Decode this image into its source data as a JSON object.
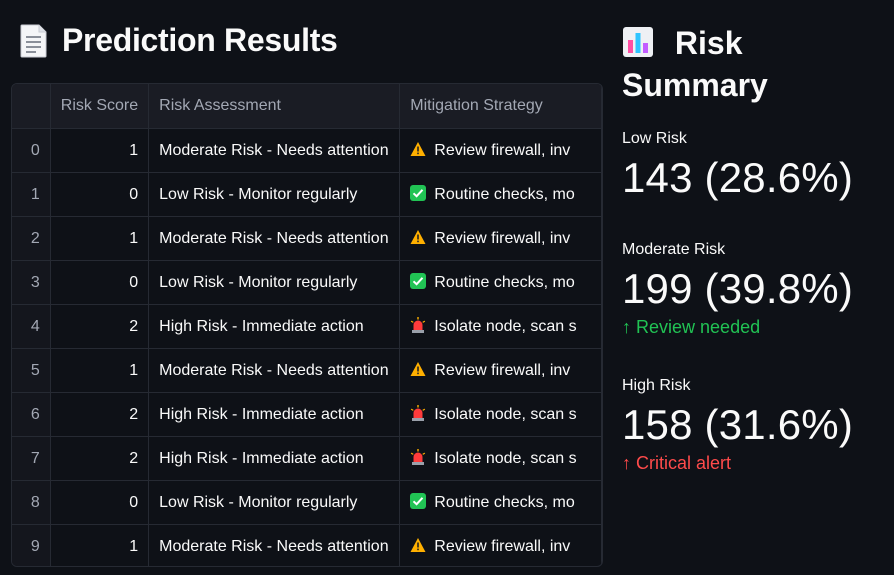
{
  "header": {
    "title": "Prediction Results",
    "icon": "page-icon"
  },
  "table": {
    "columns": [
      "",
      "Risk Score",
      "Risk Assessment",
      "Mitigation Strategy"
    ],
    "rows": [
      {
        "index": "0",
        "score": "1",
        "assessment": "Moderate Risk - Needs attention",
        "icon": "warning-icon",
        "mitigation": "Review firewall, inv"
      },
      {
        "index": "1",
        "score": "0",
        "assessment": "Low Risk - Monitor regularly",
        "icon": "check-icon",
        "mitigation": "Routine checks, mo"
      },
      {
        "index": "2",
        "score": "1",
        "assessment": "Moderate Risk - Needs attention",
        "icon": "warning-icon",
        "mitigation": "Review firewall, inv"
      },
      {
        "index": "3",
        "score": "0",
        "assessment": "Low Risk - Monitor regularly",
        "icon": "check-icon",
        "mitigation": "Routine checks, mo"
      },
      {
        "index": "4",
        "score": "2",
        "assessment": "High Risk - Immediate action",
        "icon": "siren-icon",
        "mitigation": "Isolate node, scan s"
      },
      {
        "index": "5",
        "score": "1",
        "assessment": "Moderate Risk - Needs attention",
        "icon": "warning-icon",
        "mitigation": "Review firewall, inv"
      },
      {
        "index": "6",
        "score": "2",
        "assessment": "High Risk - Immediate action",
        "icon": "siren-icon",
        "mitigation": "Isolate node, scan s"
      },
      {
        "index": "7",
        "score": "2",
        "assessment": "High Risk - Immediate action",
        "icon": "siren-icon",
        "mitigation": "Isolate node, scan s"
      },
      {
        "index": "8",
        "score": "0",
        "assessment": "Low Risk - Monitor regularly",
        "icon": "check-icon",
        "mitigation": "Routine checks, mo"
      },
      {
        "index": "9",
        "score": "1",
        "assessment": "Moderate Risk - Needs attention",
        "icon": "warning-icon",
        "mitigation": "Review firewall, inv"
      }
    ]
  },
  "summary": {
    "title": "Risk Summary",
    "icon": "bar-chart-icon",
    "metrics": [
      {
        "label": "Low Risk",
        "value": "143 (28.6%)",
        "delta": "",
        "delta_color": ""
      },
      {
        "label": "Moderate Risk",
        "value": "199 (39.8%)",
        "delta": "Review needed",
        "delta_color": "#21c354"
      },
      {
        "label": "High Risk",
        "value": "158 (31.6%)",
        "delta": "Critical alert",
        "delta_color": "#ff4b4b"
      }
    ]
  },
  "colors": {
    "background": "#0e1117",
    "text": "#fafafa",
    "muted": "#a3a8b4",
    "border": "#262a33",
    "green": "#21c354",
    "red": "#ff4b4b"
  }
}
